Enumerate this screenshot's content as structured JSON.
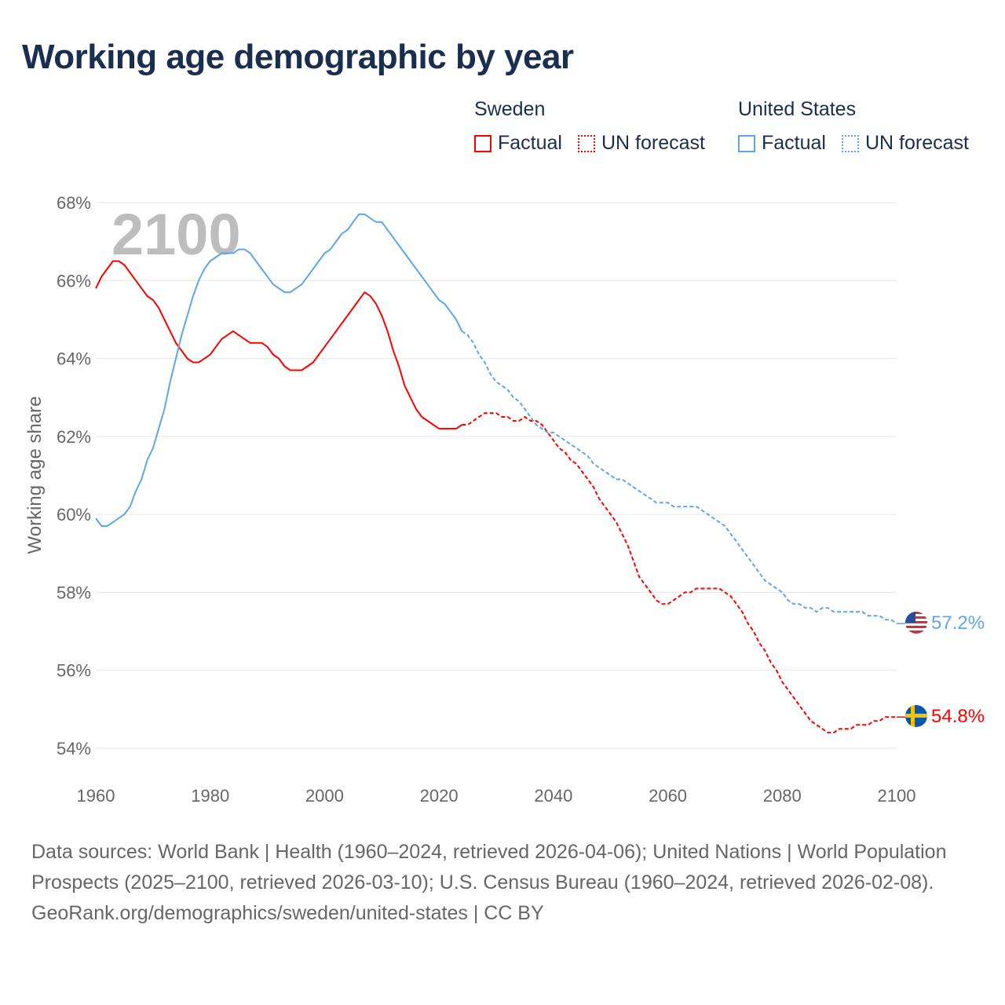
{
  "title": "Working age demographic by year",
  "legend": {
    "groups": [
      {
        "name": "Sweden",
        "factual": "Factual",
        "forecast": "UN forecast",
        "color": "#ff0000"
      },
      {
        "name": "United States",
        "factual": "Factual",
        "forecast": "UN forecast",
        "color": "#5ea6ea"
      }
    ]
  },
  "footer": {
    "sources": "Data sources: World Bank | Health (1960–2024, retrieved 2026-04-06); United Nations | World Population Prospects (2025–2100, retrieved 2026-03-10); U.S. Census Bureau (1960–2024, retrieved 2026-02-08).",
    "credit": "GeoRank.org/demographics/sweden/united-states | CC BY"
  },
  "chart_data": {
    "type": "line",
    "title": "Working age demographic by year",
    "ylabel": "Working age share",
    "xlabel": "",
    "year_watermark": "2100",
    "xlim": [
      1960,
      2100
    ],
    "ylim": [
      54,
      68
    ],
    "x_ticks": [
      "1960",
      "1980",
      "2000",
      "2020",
      "2040",
      "2060",
      "2080",
      "2100"
    ],
    "x_tick_values": [
      1960,
      1980,
      2000,
      2020,
      2040,
      2060,
      2080,
      2100
    ],
    "y_ticks": [
      "54%",
      "56%",
      "58%",
      "60%",
      "62%",
      "64%",
      "66%",
      "68%"
    ],
    "y_tick_values": [
      54,
      56,
      58,
      60,
      62,
      64,
      66,
      68
    ],
    "grid": true,
    "series": [
      {
        "name": "Sweden",
        "color": "#ff0000",
        "end_label": "54.8%",
        "factual_start": 1960,
        "factual": [
          65.8,
          66.1,
          66.3,
          66.5,
          66.5,
          66.4,
          66.2,
          66.0,
          65.8,
          65.6,
          65.5,
          65.3,
          65.0,
          64.7,
          64.4,
          64.2,
          64.0,
          63.9,
          63.9,
          64.0,
          64.1,
          64.3,
          64.5,
          64.6,
          64.7,
          64.6,
          64.5,
          64.4,
          64.4,
          64.4,
          64.3,
          64.1,
          64.0,
          63.8,
          63.7,
          63.7,
          63.7,
          63.8,
          63.9,
          64.1,
          64.3,
          64.5,
          64.7,
          64.9,
          65.1,
          65.3,
          65.5,
          65.7,
          65.6,
          65.4,
          65.1,
          64.7,
          64.2,
          63.8,
          63.3,
          63.0,
          62.7,
          62.5,
          62.4,
          62.3,
          62.2,
          62.2,
          62.2,
          62.2,
          62.3
        ],
        "forecast_start": 2024,
        "forecast": [
          62.3,
          62.3,
          62.4,
          62.5,
          62.6,
          62.6,
          62.6,
          62.5,
          62.5,
          62.4,
          62.4,
          62.5,
          62.4,
          62.4,
          62.3,
          62.1,
          61.9,
          61.7,
          61.6,
          61.4,
          61.3,
          61.1,
          60.9,
          60.7,
          60.4,
          60.2,
          60.0,
          59.8,
          59.5,
          59.2,
          58.8,
          58.4,
          58.2,
          58.0,
          57.8,
          57.7,
          57.7,
          57.8,
          57.9,
          58.0,
          58.0,
          58.1,
          58.1,
          58.1,
          58.1,
          58.1,
          58.0,
          57.9,
          57.7,
          57.5,
          57.2,
          57.0,
          56.7,
          56.5,
          56.2,
          56.0,
          55.7,
          55.5,
          55.3,
          55.1,
          54.9,
          54.7,
          54.6,
          54.5,
          54.4,
          54.4,
          54.5,
          54.5,
          54.5,
          54.6,
          54.6,
          54.6,
          54.7,
          54.7,
          54.8,
          54.8,
          54.8
        ]
      },
      {
        "name": "United States",
        "color": "#5ea6ea",
        "end_label": "57.2%",
        "factual_start": 1960,
        "factual": [
          59.9,
          59.7,
          59.7,
          59.8,
          59.9,
          60.0,
          60.2,
          60.6,
          60.9,
          61.4,
          61.7,
          62.2,
          62.7,
          63.4,
          64.0,
          64.6,
          65.1,
          65.6,
          66.0,
          66.3,
          66.5,
          66.6,
          66.7,
          66.7,
          66.7,
          66.8,
          66.8,
          66.7,
          66.5,
          66.3,
          66.1,
          65.9,
          65.8,
          65.7,
          65.7,
          65.8,
          65.9,
          66.1,
          66.3,
          66.5,
          66.7,
          66.8,
          67.0,
          67.2,
          67.3,
          67.5,
          67.7,
          67.7,
          67.6,
          67.5,
          67.5,
          67.3,
          67.1,
          66.9,
          66.7,
          66.5,
          66.3,
          66.1,
          65.9,
          65.7,
          65.5,
          65.4,
          65.2,
          65.0,
          64.7
        ],
        "forecast_start": 2024,
        "forecast": [
          64.7,
          64.6,
          64.4,
          64.1,
          63.9,
          63.6,
          63.4,
          63.3,
          63.2,
          63.0,
          62.9,
          62.7,
          62.5,
          62.3,
          62.2,
          62.1,
          62.1,
          62.0,
          61.9,
          61.8,
          61.7,
          61.6,
          61.5,
          61.3,
          61.2,
          61.1,
          61.0,
          60.9,
          60.9,
          60.8,
          60.7,
          60.6,
          60.5,
          60.4,
          60.3,
          60.3,
          60.3,
          60.2,
          60.2,
          60.2,
          60.2,
          60.2,
          60.1,
          60.0,
          59.9,
          59.8,
          59.7,
          59.5,
          59.3,
          59.1,
          58.9,
          58.7,
          58.5,
          58.3,
          58.2,
          58.1,
          58.0,
          57.8,
          57.7,
          57.7,
          57.6,
          57.6,
          57.5,
          57.6,
          57.6,
          57.5,
          57.5,
          57.5,
          57.5,
          57.5,
          57.5,
          57.4,
          57.4,
          57.4,
          57.3,
          57.3,
          57.2
        ]
      }
    ]
  }
}
